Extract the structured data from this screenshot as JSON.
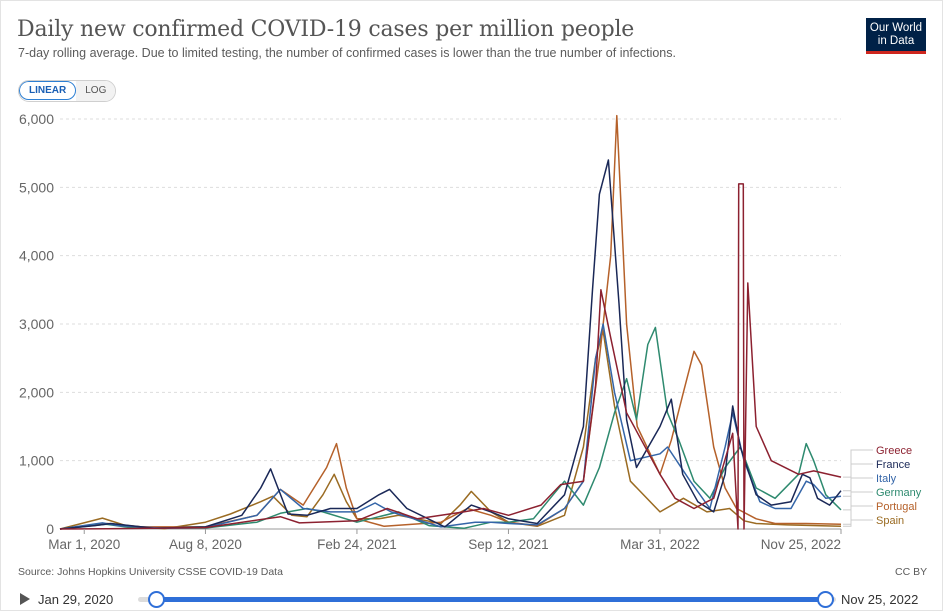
{
  "header": {
    "title": "Daily new confirmed COVID-19 cases per million people",
    "subtitle": "7-day rolling average. Due to limited testing, the number of confirmed cases is lower than the true number of infections.",
    "logo_line1": "Our World",
    "logo_line2": "in Data"
  },
  "scale_toggle": {
    "linear_label": "LINEAR",
    "log_label": "LOG",
    "selected": "LINEAR"
  },
  "footer": {
    "source": "Source: Johns Hopkins University CSSE COVID-19 Data",
    "license": "CC BY"
  },
  "timeline": {
    "start_label": "Jan 29, 2020",
    "end_label": "Nov 25, 2022"
  },
  "chart_data": {
    "type": "line",
    "title": "Daily new confirmed COVID-19 cases per million people",
    "xlabel": "",
    "ylabel": "",
    "x_range": [
      "2020-01-29",
      "2022-11-25"
    ],
    "ylim": [
      0,
      6000
    ],
    "y_ticks": [
      0,
      1000,
      2000,
      3000,
      4000,
      5000,
      6000
    ],
    "y_tick_labels": [
      "0",
      "1,000",
      "2,000",
      "3,000",
      "4,000",
      "5,000",
      "6,000"
    ],
    "x_ticks": [
      "2020-03-01",
      "2020-08-08",
      "2021-02-24",
      "2021-09-12",
      "2022-03-31",
      "2022-11-25"
    ],
    "x_tick_labels": [
      "Mar 1, 2020",
      "Aug 8, 2020",
      "Feb 24, 2021",
      "Sep 12, 2021",
      "Mar 31, 2022",
      "Nov 25, 2022"
    ],
    "grid": "horizontal dashed",
    "legend": "right, labels at line ends",
    "series": [
      {
        "name": "Greece",
        "color": "#8c2130",
        "points": [
          [
            "2020-01-29",
            0
          ],
          [
            "2020-04-01",
            5
          ],
          [
            "2020-08-08",
            20
          ],
          [
            "2020-11-15",
            180
          ],
          [
            "2020-12-10",
            90
          ],
          [
            "2021-02-24",
            120
          ],
          [
            "2021-04-05",
            300
          ],
          [
            "2021-05-15",
            150
          ],
          [
            "2021-07-15",
            250
          ],
          [
            "2021-08-10",
            300
          ],
          [
            "2021-09-12",
            200
          ],
          [
            "2021-10-25",
            350
          ],
          [
            "2021-11-20",
            650
          ],
          [
            "2021-12-20",
            700
          ],
          [
            "2022-01-05",
            2100
          ],
          [
            "2022-01-12",
            3500
          ],
          [
            "2022-01-25",
            2800
          ],
          [
            "2022-02-15",
            1700
          ],
          [
            "2022-03-31",
            800
          ],
          [
            "2022-04-20",
            450
          ],
          [
            "2022-05-15",
            300
          ],
          [
            "2022-06-10",
            450
          ],
          [
            "2022-07-05",
            1400
          ],
          [
            "2022-07-12",
            0
          ],
          [
            "2022-07-13",
            5050
          ],
          [
            "2022-07-19",
            5050
          ],
          [
            "2022-07-20",
            0
          ],
          [
            "2022-07-25",
            3600
          ],
          [
            "2022-08-05",
            1500
          ],
          [
            "2022-08-25",
            1000
          ],
          [
            "2022-09-30",
            800
          ],
          [
            "2022-10-20",
            850
          ],
          [
            "2022-11-25",
            760
          ]
        ]
      },
      {
        "name": "France",
        "color": "#1a2857",
        "points": [
          [
            "2020-01-29",
            0
          ],
          [
            "2020-03-15",
            50
          ],
          [
            "2020-04-05",
            80
          ],
          [
            "2020-06-01",
            10
          ],
          [
            "2020-08-08",
            30
          ],
          [
            "2020-09-25",
            200
          ],
          [
            "2020-10-20",
            600
          ],
          [
            "2020-11-02",
            880
          ],
          [
            "2020-11-25",
            220
          ],
          [
            "2020-12-20",
            200
          ],
          [
            "2021-01-20",
            300
          ],
          [
            "2021-02-24",
            300
          ],
          [
            "2021-03-25",
            500
          ],
          [
            "2021-04-08",
            580
          ],
          [
            "2021-05-01",
            300
          ],
          [
            "2021-06-20",
            30
          ],
          [
            "2021-07-25",
            350
          ],
          [
            "2021-08-20",
            250
          ],
          [
            "2021-09-12",
            150
          ],
          [
            "2021-10-20",
            80
          ],
          [
            "2021-11-25",
            500
          ],
          [
            "2021-12-20",
            1500
          ],
          [
            "2022-01-01",
            3500
          ],
          [
            "2022-01-10",
            4900
          ],
          [
            "2022-01-22",
            5400
          ],
          [
            "2022-02-05",
            3300
          ],
          [
            "2022-02-15",
            1600
          ],
          [
            "2022-02-28",
            900
          ],
          [
            "2022-03-31",
            1500
          ],
          [
            "2022-04-15",
            1900
          ],
          [
            "2022-04-30",
            800
          ],
          [
            "2022-05-20",
            400
          ],
          [
            "2022-06-10",
            250
          ],
          [
            "2022-06-25",
            800
          ],
          [
            "2022-07-05",
            1800
          ],
          [
            "2022-07-15",
            1200
          ],
          [
            "2022-08-05",
            500
          ],
          [
            "2022-08-25",
            350
          ],
          [
            "2022-09-20",
            400
          ],
          [
            "2022-10-05",
            800
          ],
          [
            "2022-10-15",
            750
          ],
          [
            "2022-10-25",
            450
          ],
          [
            "2022-11-10",
            350
          ],
          [
            "2022-11-25",
            560
          ]
        ]
      },
      {
        "name": "Italy",
        "color": "#3465a8",
        "points": [
          [
            "2020-01-29",
            0
          ],
          [
            "2020-03-25",
            90
          ],
          [
            "2020-04-15",
            50
          ],
          [
            "2020-06-15",
            10
          ],
          [
            "2020-08-08",
            20
          ],
          [
            "2020-10-15",
            200
          ],
          [
            "2020-11-15",
            580
          ],
          [
            "2020-12-15",
            300
          ],
          [
            "2021-01-20",
            250
          ],
          [
            "2021-02-24",
            250
          ],
          [
            "2021-03-20",
            380
          ],
          [
            "2021-04-10",
            250
          ],
          [
            "2021-06-15",
            30
          ],
          [
            "2021-07-30",
            100
          ],
          [
            "2021-08-20",
            100
          ],
          [
            "2021-09-12",
            80
          ],
          [
            "2021-10-20",
            60
          ],
          [
            "2021-11-25",
            300
          ],
          [
            "2021-12-20",
            700
          ],
          [
            "2022-01-05",
            2500
          ],
          [
            "2022-01-15",
            3000
          ],
          [
            "2022-01-30",
            2000
          ],
          [
            "2022-02-20",
            1000
          ],
          [
            "2022-03-31",
            1100
          ],
          [
            "2022-04-10",
            1200
          ],
          [
            "2022-05-10",
            700
          ],
          [
            "2022-06-05",
            300
          ],
          [
            "2022-06-25",
            1200
          ],
          [
            "2022-07-05",
            1700
          ],
          [
            "2022-07-20",
            1000
          ],
          [
            "2022-08-10",
            400
          ],
          [
            "2022-08-30",
            300
          ],
          [
            "2022-09-20",
            300
          ],
          [
            "2022-10-10",
            700
          ],
          [
            "2022-10-20",
            650
          ],
          [
            "2022-11-05",
            450
          ],
          [
            "2022-11-25",
            480
          ]
        ]
      },
      {
        "name": "Germany",
        "color": "#2e8a6f",
        "points": [
          [
            "2020-01-29",
            0
          ],
          [
            "2020-03-30",
            70
          ],
          [
            "2020-05-01",
            20
          ],
          [
            "2020-08-08",
            15
          ],
          [
            "2020-10-15",
            100
          ],
          [
            "2020-11-15",
            230
          ],
          [
            "2020-12-20",
            300
          ],
          [
            "2021-01-10",
            250
          ],
          [
            "2021-02-24",
            100
          ],
          [
            "2021-03-25",
            180
          ],
          [
            "2021-04-20",
            250
          ],
          [
            "2021-05-30",
            50
          ],
          [
            "2021-07-15",
            10
          ],
          [
            "2021-08-20",
            100
          ],
          [
            "2021-09-12",
            100
          ],
          [
            "2021-10-15",
            150
          ],
          [
            "2021-11-10",
            500
          ],
          [
            "2021-11-25",
            700
          ],
          [
            "2021-12-20",
            350
          ],
          [
            "2022-01-10",
            900
          ],
          [
            "2022-01-30",
            1700
          ],
          [
            "2022-02-15",
            2200
          ],
          [
            "2022-02-28",
            1600
          ],
          [
            "2022-03-15",
            2700
          ],
          [
            "2022-03-25",
            2950
          ],
          [
            "2022-04-10",
            1700
          ],
          [
            "2022-04-25",
            1300
          ],
          [
            "2022-05-15",
            700
          ],
          [
            "2022-06-05",
            450
          ],
          [
            "2022-06-25",
            900
          ],
          [
            "2022-07-15",
            1200
          ],
          [
            "2022-08-05",
            600
          ],
          [
            "2022-08-30",
            450
          ],
          [
            "2022-09-30",
            800
          ],
          [
            "2022-10-10",
            1250
          ],
          [
            "2022-10-20",
            1000
          ],
          [
            "2022-11-05",
            500
          ],
          [
            "2022-11-25",
            280
          ]
        ]
      },
      {
        "name": "Portugal",
        "color": "#b5612a",
        "points": [
          [
            "2020-01-29",
            0
          ],
          [
            "2020-04-01",
            80
          ],
          [
            "2020-05-15",
            30
          ],
          [
            "2020-08-08",
            30
          ],
          [
            "2020-10-15",
            200
          ],
          [
            "2020-11-15",
            580
          ],
          [
            "2020-12-15",
            350
          ],
          [
            "2021-01-15",
            900
          ],
          [
            "2021-01-28",
            1250
          ],
          [
            "2021-02-10",
            600
          ],
          [
            "2021-02-24",
            150
          ],
          [
            "2021-04-01",
            40
          ],
          [
            "2021-06-15",
            100
          ],
          [
            "2021-07-20",
            300
          ],
          [
            "2021-08-20",
            200
          ],
          [
            "2021-09-12",
            100
          ],
          [
            "2021-10-20",
            50
          ],
          [
            "2021-11-25",
            300
          ],
          [
            "2021-12-20",
            700
          ],
          [
            "2022-01-10",
            2500
          ],
          [
            "2022-01-25",
            4000
          ],
          [
            "2022-02-02",
            6050
          ],
          [
            "2022-02-15",
            3000
          ],
          [
            "2022-03-01",
            1500
          ],
          [
            "2022-03-31",
            800
          ],
          [
            "2022-04-15",
            1300
          ],
          [
            "2022-05-01",
            2000
          ],
          [
            "2022-05-15",
            2600
          ],
          [
            "2022-05-25",
            2400
          ],
          [
            "2022-06-10",
            1200
          ],
          [
            "2022-06-25",
            600
          ],
          [
            "2022-07-10",
            300
          ],
          [
            "2022-08-05",
            150
          ],
          [
            "2022-08-30",
            80
          ],
          [
            "2022-10-10",
            80
          ],
          [
            "2022-11-25",
            70
          ]
        ]
      },
      {
        "name": "Spain",
        "color": "#9a6b22",
        "points": [
          [
            "2020-01-29",
            0
          ],
          [
            "2020-03-25",
            160
          ],
          [
            "2020-04-25",
            50
          ],
          [
            "2020-06-15",
            5
          ],
          [
            "2020-08-08",
            100
          ],
          [
            "2020-09-10",
            220
          ],
          [
            "2020-10-20",
            400
          ],
          [
            "2020-11-05",
            480
          ],
          [
            "2020-11-30",
            200
          ],
          [
            "2020-12-20",
            180
          ],
          [
            "2021-01-10",
            500
          ],
          [
            "2021-01-25",
            800
          ],
          [
            "2021-02-10",
            400
          ],
          [
            "2021-02-24",
            150
          ],
          [
            "2021-03-25",
            150
          ],
          [
            "2021-04-20",
            200
          ],
          [
            "2021-06-15",
            80
          ],
          [
            "2021-07-10",
            350
          ],
          [
            "2021-07-25",
            550
          ],
          [
            "2021-08-20",
            250
          ],
          [
            "2021-09-12",
            100
          ],
          [
            "2021-10-20",
            40
          ],
          [
            "2021-11-25",
            200
          ],
          [
            "2021-12-20",
            1200
          ],
          [
            "2022-01-05",
            2500
          ],
          [
            "2022-01-15",
            2900
          ],
          [
            "2022-01-30",
            1800
          ],
          [
            "2022-02-20",
            700
          ],
          [
            "2022-03-31",
            250
          ],
          [
            "2022-05-01",
            450
          ],
          [
            "2022-06-01",
            250
          ],
          [
            "2022-07-01",
            300
          ],
          [
            "2022-07-20",
            120
          ],
          [
            "2022-08-05",
            80
          ],
          [
            "2022-09-15",
            60
          ],
          [
            "2022-11-25",
            40
          ]
        ]
      }
    ]
  }
}
